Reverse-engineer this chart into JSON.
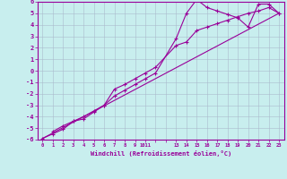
{
  "title": "",
  "xlabel": "Windchill (Refroidissement éolien,°C)",
  "bg_color": "#c8eeee",
  "line_color": "#990099",
  "grid_color": "#aabbcc",
  "xmin": -0.5,
  "xmax": 23.5,
  "ymin": -6,
  "ymax": 6,
  "line1_x": [
    0,
    1,
    2,
    3,
    4,
    5,
    6,
    7,
    8,
    9,
    10,
    11,
    13,
    14,
    15,
    16,
    17,
    18,
    19,
    20,
    21,
    22,
    23
  ],
  "line1_y": [
    -5.9,
    -5.5,
    -5.1,
    -4.4,
    -4.2,
    -3.6,
    -3.0,
    -1.6,
    -1.2,
    -0.7,
    -0.2,
    0.3,
    2.2,
    2.5,
    3.5,
    3.8,
    4.1,
    4.4,
    4.7,
    5.0,
    5.2,
    5.5,
    5.0
  ],
  "line2_x": [
    1,
    2,
    3,
    4,
    5,
    6,
    7,
    8,
    9,
    10,
    11,
    13,
    14,
    15,
    16,
    17,
    18,
    19,
    20,
    21,
    22,
    23
  ],
  "line2_y": [
    -5.3,
    -4.8,
    -4.4,
    -4.0,
    -3.5,
    -3.0,
    -2.2,
    -1.7,
    -1.2,
    -0.7,
    -0.2,
    2.8,
    5.0,
    6.2,
    5.5,
    5.2,
    4.9,
    4.6,
    3.8,
    5.8,
    5.8,
    5.0
  ],
  "line3_x": [
    0,
    23
  ],
  "line3_y": [
    -5.9,
    5.0
  ],
  "xtick_labels": [
    "0",
    "1",
    "2",
    "3",
    "4",
    "5",
    "6",
    "7",
    "8",
    "9",
    "1011",
    "",
    "1314151617181920212223",
    "",
    "",
    "",
    "",
    "",
    "",
    "",
    "",
    "",
    ""
  ]
}
